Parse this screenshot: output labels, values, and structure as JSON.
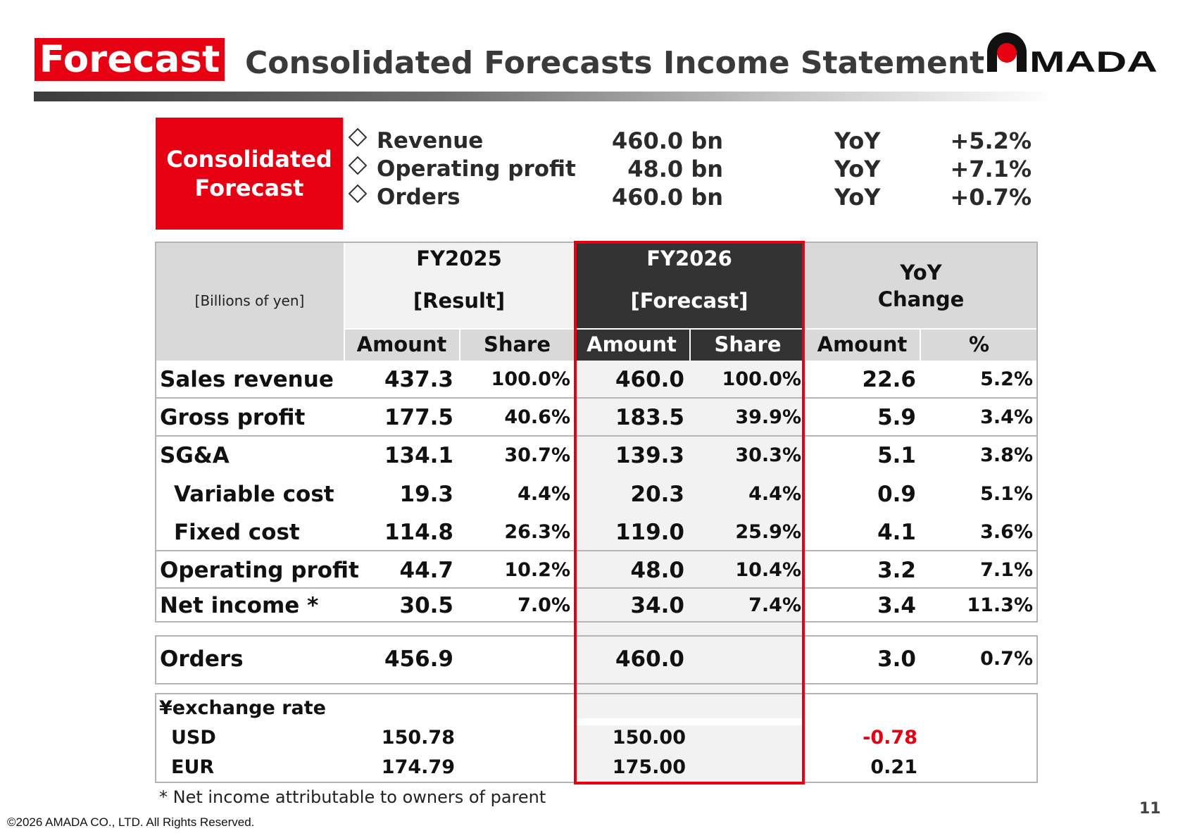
{
  "header": {
    "tag": "Forecast",
    "title": "Consolidated Forecasts Income Statement",
    "logo_text": "AMADA"
  },
  "summary": {
    "box_line1": "Consolidated",
    "box_line2": "Forecast",
    "rows": [
      {
        "label": "Revenue",
        "value": "460.0 bn",
        "yoy": "YoY",
        "pct": "+5.2%"
      },
      {
        "label": "Operating profit",
        "value": "48.0 bn",
        "yoy": "YoY",
        "pct": "+7.1%"
      },
      {
        "label": "Orders",
        "value": "460.0 bn",
        "yoy": "YoY",
        "pct": "+0.7%"
      }
    ]
  },
  "table": {
    "unit": "[Billions of yen]",
    "fy2025_year": "FY2025",
    "fy2025_kind": "[Result]",
    "fy2026_year": "FY2026",
    "fy2026_kind": "[Forecast]",
    "yoy_line1": "YoY",
    "yoy_line2": "Change",
    "sub_amount": "Amount",
    "sub_share": "Share",
    "sub_pct": "%",
    "rows": [
      {
        "label": "Sales revenue",
        "a25": "437.3",
        "s25": "100.0%",
        "a26": "460.0",
        "s26": "100.0%",
        "chg": "22.6",
        "pct": "5.2%"
      },
      {
        "label": "Gross profit",
        "a25": "177.5",
        "s25": "40.6%",
        "a26": "183.5",
        "s26": "39.9%",
        "chg": "5.9",
        "pct": "3.4%"
      },
      {
        "label": "SG&A",
        "a25": "134.1",
        "s25": "30.7%",
        "a26": "139.3",
        "s26": "30.3%",
        "chg": "5.1",
        "pct": "3.8%"
      },
      {
        "label": "Variable cost",
        "a25": "19.3",
        "s25": "4.4%",
        "a26": "20.3",
        "s26": "4.4%",
        "chg": "0.9",
        "pct": "5.1%"
      },
      {
        "label": "Fixed cost",
        "a25": "114.8",
        "s25": "26.3%",
        "a26": "119.0",
        "s26": "25.9%",
        "chg": "4.1",
        "pct": "3.6%"
      },
      {
        "label": "Operating profit",
        "a25": "44.7",
        "s25": "10.2%",
        "a26": "48.0",
        "s26": "10.4%",
        "chg": "3.2",
        "pct": "7.1%"
      },
      {
        "label": "Net income *",
        "a25": "30.5",
        "s25": "7.0%",
        "a26": "34.0",
        "s26": "7.4%",
        "chg": "3.4",
        "pct": "11.3%"
      }
    ],
    "orders": {
      "label": "Orders",
      "a25": "456.9",
      "a26": "460.0",
      "chg": "3.0",
      "pct": "0.7%"
    },
    "fx": {
      "title": "¥exchange rate",
      "usd": {
        "label": "USD",
        "a25": "150.78",
        "a26": "150.00",
        "chg": "-0.78"
      },
      "eur": {
        "label": "EUR",
        "a25": "174.79",
        "a26": "175.00",
        "chg": "0.21"
      }
    }
  },
  "footnote": "* Net income attributable to owners of parent",
  "copyright": "©2026 AMADA CO., LTD. All Rights Reserved.",
  "page_number": "11",
  "colors": {
    "accent_red": "#e60012",
    "dark_header": "#333333",
    "negative": "#e60012"
  }
}
